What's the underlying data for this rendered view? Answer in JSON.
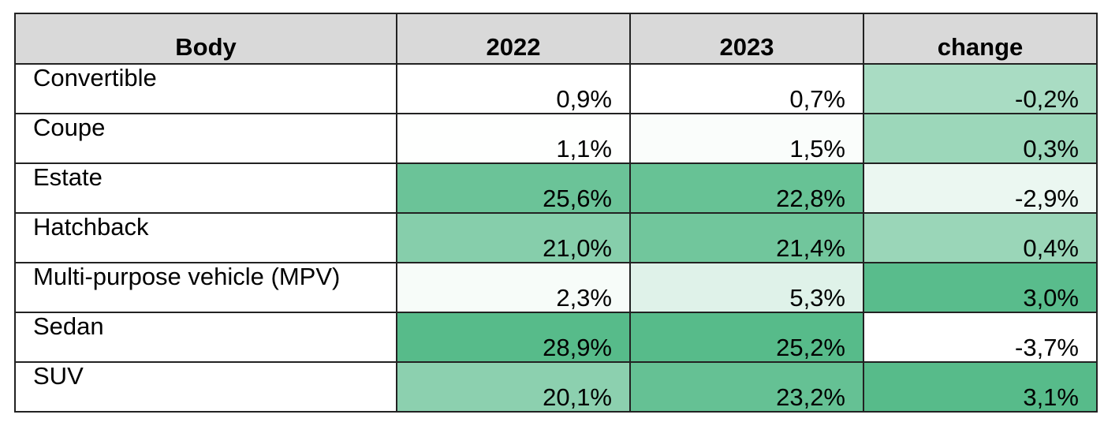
{
  "table": {
    "header": [
      "Body",
      "2022",
      "2023",
      "change"
    ],
    "rows": [
      [
        "Convertible",
        "0,9%",
        "0,7%",
        "-0,2%"
      ],
      [
        "Coupe",
        "1,1%",
        "1,5%",
        "0,3%"
      ],
      [
        "Estate",
        "25,6%",
        "22,8%",
        "-2,9%"
      ],
      [
        "Hatchback",
        "21,0%",
        "21,4%",
        "0,4%"
      ],
      [
        "Multi-purpose vehicle (MPV)",
        "2,3%",
        "5,3%",
        "3,0%"
      ],
      [
        "Sedan",
        "28,9%",
        "25,2%",
        "-3,7%"
      ],
      [
        "SUV",
        "20,1%",
        "23,2%",
        "3,1%"
      ]
    ]
  }
}
